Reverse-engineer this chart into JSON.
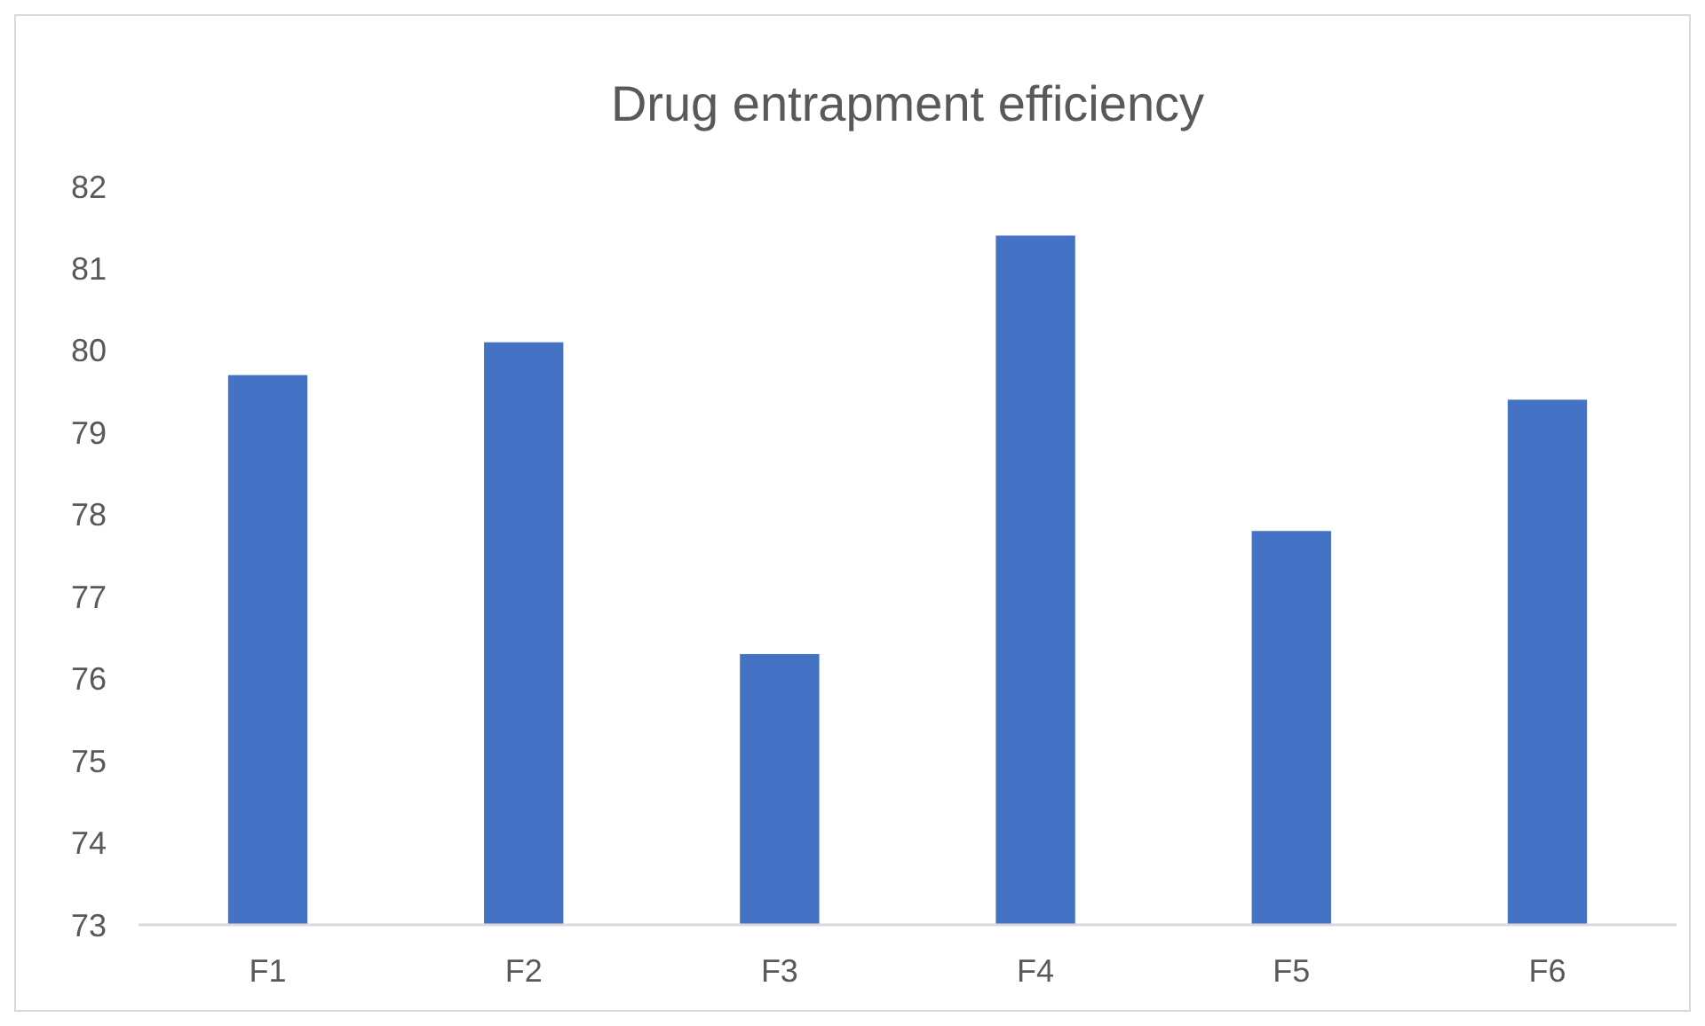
{
  "chart_data": {
    "type": "bar",
    "title": "Drug entrapment efficiency",
    "categories": [
      "F1",
      "F2",
      "F3",
      "F4",
      "F5",
      "F6"
    ],
    "values": [
      79.7,
      80.1,
      76.3,
      81.4,
      77.8,
      79.4
    ],
    "color": "#4472c4",
    "ylim": [
      73,
      82
    ],
    "yticks": [
      73,
      74,
      75,
      76,
      77,
      78,
      79,
      80,
      81,
      82
    ],
    "grid": false
  }
}
